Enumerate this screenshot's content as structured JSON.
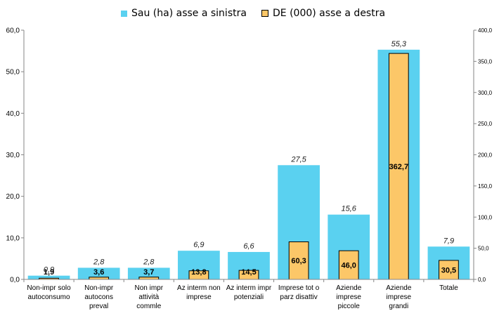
{
  "chart_data": {
    "type": "bar",
    "categories": [
      [
        "Non-impr solo",
        "autoconsumo"
      ],
      [
        "Non-impr",
        "autocons",
        "preval"
      ],
      [
        "Non impr",
        "attività",
        "commle"
      ],
      [
        "Az interm non",
        "imprese"
      ],
      [
        "Az interm impr",
        "potenziali"
      ],
      [
        "Imprese tot o",
        "parz disattiv"
      ],
      [
        "Aziende",
        "imprese",
        "piccole"
      ],
      [
        "Aziende",
        "imprese",
        "grandi"
      ],
      [
        "Totale"
      ]
    ],
    "series": [
      {
        "name": "Sau (ha) asse a sinistra",
        "axis": "left",
        "color": "#5ad1f0",
        "values": [
          0.9,
          2.8,
          2.8,
          6.9,
          6.6,
          27.5,
          15.6,
          55.3,
          7.9
        ],
        "labels": [
          "0,9",
          "2,8",
          "2,8",
          "6,9",
          "6,6",
          "27,5",
          "15,6",
          "55,3",
          "7,9"
        ]
      },
      {
        "name": "DE (000) asse a destra",
        "axis": "right",
        "color": "#fcc768",
        "values": [
          1.9,
          3.6,
          3.7,
          13.8,
          14.5,
          60.3,
          46.0,
          362.7,
          30.5
        ],
        "labels": [
          "1,9",
          "3,6",
          "3,7",
          "13,8",
          "14,5",
          "60,3",
          "46,0",
          "362,7",
          "30,5"
        ]
      }
    ],
    "ylim_left": [
      0,
      60
    ],
    "ylim_right": [
      0,
      400
    ],
    "yticks_left": [
      "0,0",
      "10,0",
      "20,0",
      "30,0",
      "40,0",
      "50,0",
      "60,0"
    ],
    "yticks_right": [
      "0,0",
      "50,0",
      "100,0",
      "150,0",
      "200,0",
      "250,0",
      "300,0",
      "350,0",
      "400,0"
    ],
    "legend_position": "top",
    "grid": false
  }
}
